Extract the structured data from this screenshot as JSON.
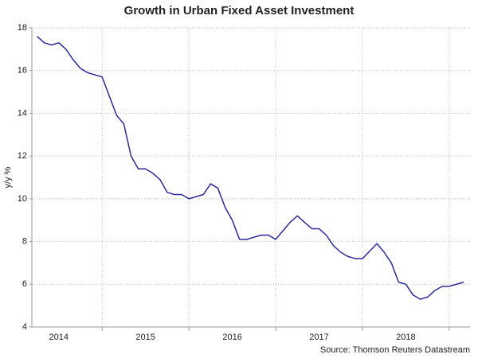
{
  "chart_data": {
    "type": "line",
    "title": "Growth in Urban Fixed Asset Investment",
    "ylabel": "y/y %",
    "source": "Source: Thomson Reuters Datastream",
    "x": [
      2014.25,
      2014.333,
      2014.417,
      2014.5,
      2014.583,
      2014.667,
      2014.75,
      2014.833,
      2014.917,
      2015.0,
      2015.167,
      2015.25,
      2015.333,
      2015.417,
      2015.5,
      2015.583,
      2015.667,
      2015.75,
      2015.833,
      2015.917,
      2016.0,
      2016.167,
      2016.25,
      2016.333,
      2016.417,
      2016.5,
      2016.583,
      2016.667,
      2016.75,
      2016.833,
      2016.917,
      2017.0,
      2017.167,
      2017.25,
      2017.333,
      2017.417,
      2017.5,
      2017.583,
      2017.667,
      2017.75,
      2017.833,
      2017.917,
      2018.0,
      2018.167,
      2018.25,
      2018.333,
      2018.417,
      2018.5,
      2018.583,
      2018.667,
      2018.75,
      2018.833,
      2018.917,
      2019.0,
      2019.167
    ],
    "series": [
      {
        "name": "Urban Fixed Asset Investment",
        "color": "#2a2a9c",
        "values": [
          17.6,
          17.3,
          17.2,
          17.3,
          17.0,
          16.5,
          16.1,
          15.9,
          15.8,
          15.7,
          13.9,
          13.5,
          12.0,
          11.4,
          11.4,
          11.2,
          10.9,
          10.3,
          10.2,
          10.2,
          10.0,
          10.2,
          10.7,
          10.5,
          9.6,
          9.0,
          8.1,
          8.1,
          8.2,
          8.3,
          8.3,
          8.1,
          8.9,
          9.2,
          8.9,
          8.6,
          8.6,
          8.3,
          7.8,
          7.5,
          7.3,
          7.2,
          7.2,
          7.9,
          7.5,
          7.0,
          6.1,
          6.0,
          5.5,
          5.3,
          5.4,
          5.7,
          5.9,
          5.9,
          6.1
        ]
      }
    ],
    "xlim": [
      2014.19,
      2019.24
    ],
    "xticks": [
      {
        "value": 2014.5,
        "label": "2014"
      },
      {
        "value": 2015.5,
        "label": "2015"
      },
      {
        "value": 2016.5,
        "label": "2016"
      },
      {
        "value": 2017.5,
        "label": "2017"
      },
      {
        "value": 2018.5,
        "label": "2018"
      }
    ],
    "ylim": [
      4,
      18
    ],
    "yticks": [
      4,
      6,
      8,
      10,
      12,
      14,
      16,
      18
    ],
    "grid": true
  }
}
